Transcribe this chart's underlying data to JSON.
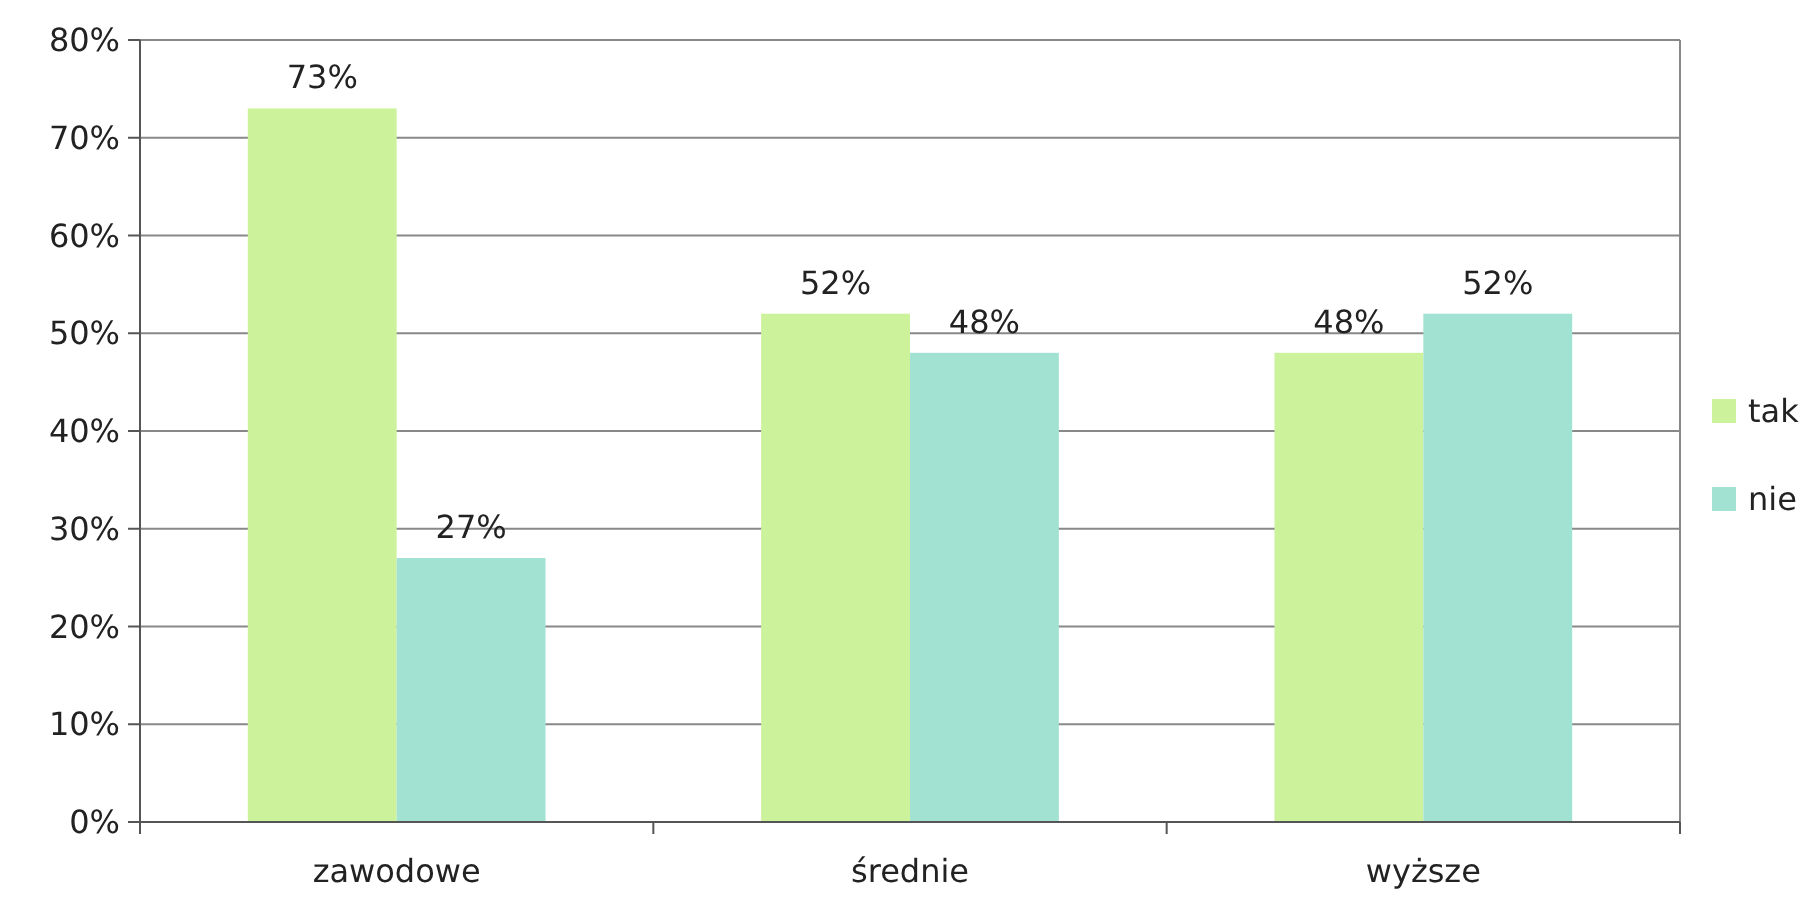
{
  "chart_data": {
    "type": "bar",
    "categories": [
      "zawodowe",
      "średnie",
      "wyższe"
    ],
    "series": [
      {
        "name": "tak",
        "color": "#ccf39c",
        "values": [
          73,
          52,
          48
        ],
        "value_labels": [
          "73%",
          "52%",
          "48%"
        ]
      },
      {
        "name": "nie",
        "color": "#a2e2d2",
        "values": [
          27,
          48,
          52
        ],
        "value_labels": [
          "27%",
          "48%",
          "52%"
        ]
      }
    ],
    "ylim": [
      0,
      80
    ],
    "yticks": [
      {
        "value": 0,
        "label": "0%"
      },
      {
        "value": 10,
        "label": "10%"
      },
      {
        "value": 20,
        "label": "20%"
      },
      {
        "value": 30,
        "label": "30%"
      },
      {
        "value": 40,
        "label": "40%"
      },
      {
        "value": 50,
        "label": "50%"
      },
      {
        "value": 60,
        "label": "60%"
      },
      {
        "value": 70,
        "label": "70%"
      },
      {
        "value": 80,
        "label": "80%"
      }
    ],
    "grid": "y",
    "legend": "right"
  }
}
